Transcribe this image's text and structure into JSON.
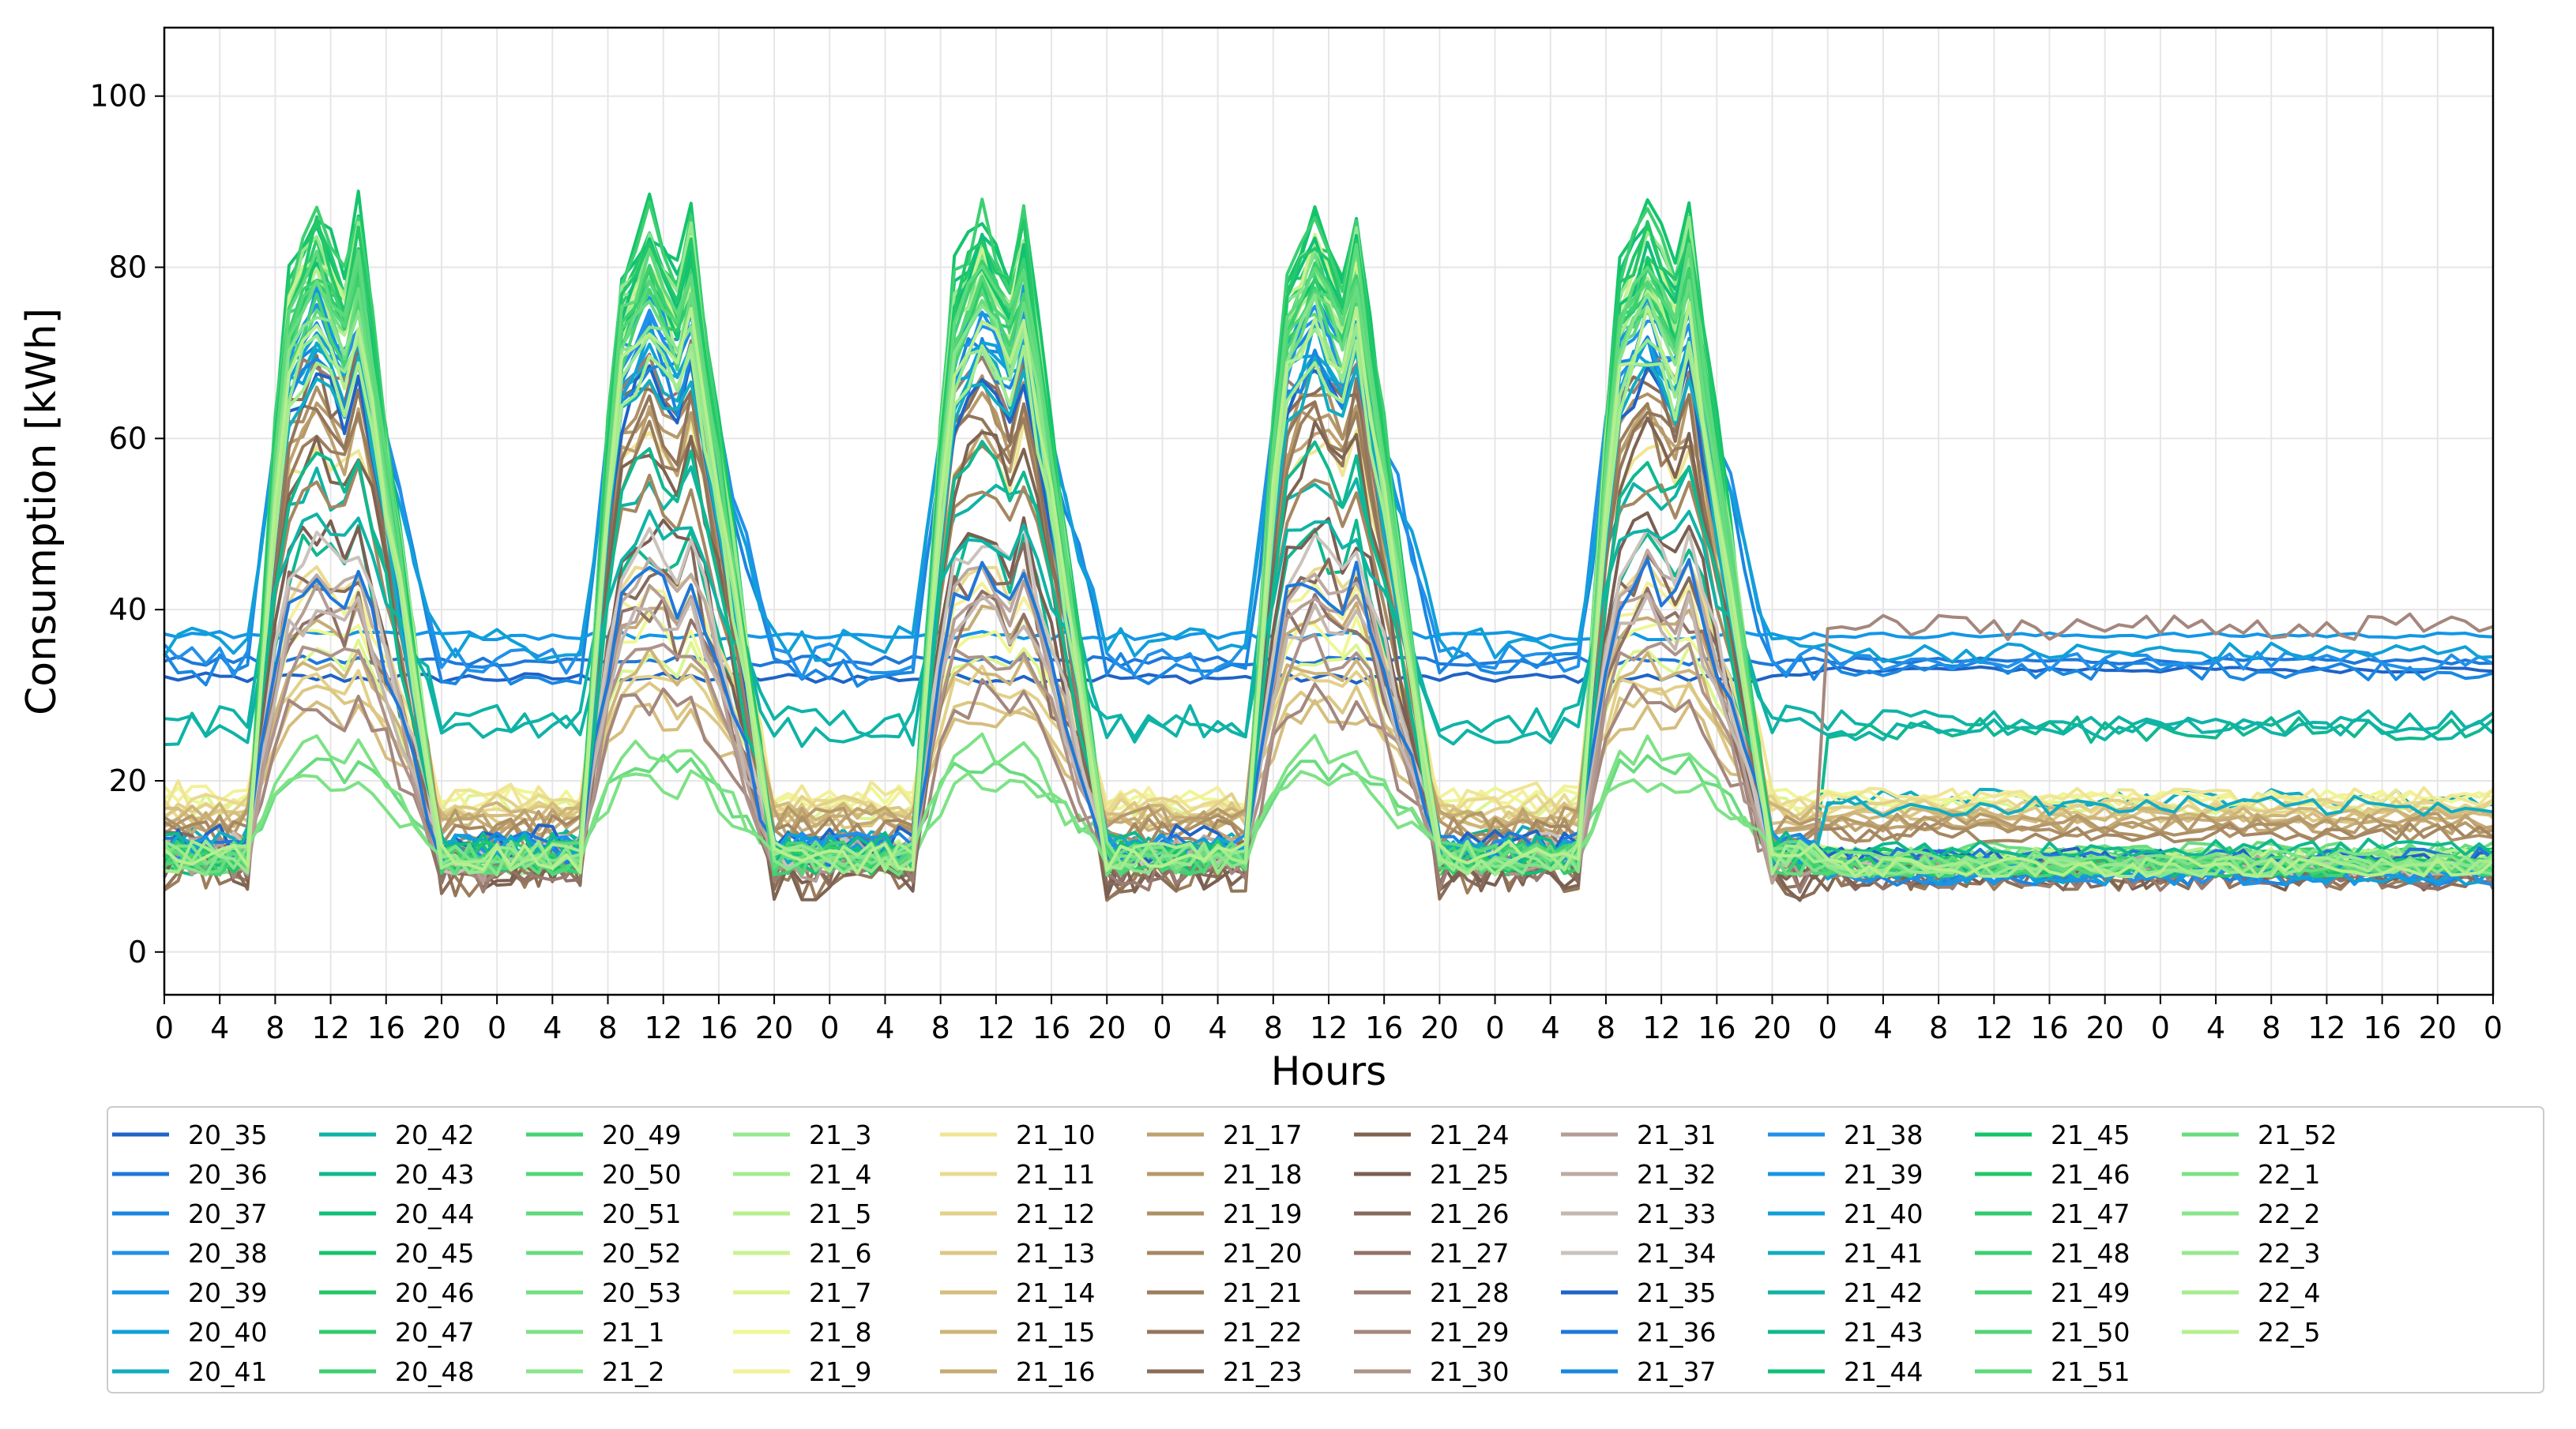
{
  "chart_data": {
    "type": "line",
    "xlabel": "Hours",
    "ylabel": "Consumption [kWh]",
    "ylim": [
      -5,
      108
    ],
    "xlim": [
      0,
      168
    ],
    "x_ticks": [
      0,
      4,
      8,
      12,
      16,
      20,
      24,
      28,
      32,
      36,
      40,
      44,
      48,
      52,
      56,
      60,
      64,
      68,
      72,
      76,
      80,
      84,
      88,
      92,
      96,
      100,
      104,
      108,
      112,
      116,
      120,
      124,
      128,
      132,
      136,
      140,
      144,
      148,
      152,
      156,
      160,
      164,
      168
    ],
    "x_tick_labels": [
      "0",
      "4",
      "8",
      "12",
      "16",
      "20",
      "0",
      "4",
      "8",
      "12",
      "16",
      "20",
      "0",
      "4",
      "8",
      "12",
      "16",
      "20",
      "0",
      "4",
      "8",
      "12",
      "16",
      "20",
      "0",
      "4",
      "8",
      "12",
      "16",
      "20",
      "0",
      "4",
      "8",
      "12",
      "16",
      "20",
      "0",
      "4",
      "8",
      "12",
      "16",
      "20",
      "0"
    ],
    "y_ticks": [
      0,
      20,
      40,
      60,
      80,
      100
    ],
    "y_tick_labels": [
      "0",
      "20",
      "40",
      "60",
      "80",
      "100"
    ],
    "grid": true,
    "legend_position": "below",
    "legend_columns": 12,
    "n_hours": 168,
    "series": [
      {
        "name": "20_35",
        "color": "#1f63c6",
        "shape": "flat",
        "base": 32,
        "peak": 0,
        "night": 32,
        "tail": 33,
        "noise": 0.6
      },
      {
        "name": "20_36",
        "color": "#1f78d8",
        "shape": "flat",
        "base": 34,
        "peak": 0,
        "night": 34,
        "tail": 34,
        "noise": 0.6
      },
      {
        "name": "20_37",
        "color": "#1a86e0",
        "shape": "office",
        "base": 33,
        "peak": 72,
        "night": 33,
        "tail": 33,
        "noise": 2.0
      },
      {
        "name": "20_38",
        "color": "#2190ea",
        "shape": "office",
        "base": 34,
        "peak": 74,
        "night": 34,
        "tail": 34,
        "noise": 2.0
      },
      {
        "name": "20_39",
        "color": "#1496e6",
        "shape": "flat",
        "base": 37,
        "peak": 0,
        "night": 37,
        "tail": 37,
        "noise": 0.5
      },
      {
        "name": "20_40",
        "color": "#10a0d8",
        "shape": "office",
        "base": 36,
        "peak": 70,
        "night": 36,
        "tail": 35,
        "noise": 2.0
      },
      {
        "name": "20_41",
        "color": "#12acc0",
        "shape": "office",
        "base": 13,
        "peak": 70,
        "night": 12,
        "tail": 18,
        "noise": 1.8
      },
      {
        "name": "20_42",
        "color": "#0fb3a6",
        "shape": "office",
        "base": 27,
        "peak": 55,
        "night": 27,
        "tail": 27,
        "noise": 2.0
      },
      {
        "name": "20_43",
        "color": "#10b88e",
        "shape": "office",
        "base": 12,
        "peak": 48,
        "night": 12,
        "tail": 26,
        "noise": 2.5
      },
      {
        "name": "20_44",
        "color": "#10bf78",
        "shape": "office",
        "base": 11,
        "peak": 85,
        "night": 11,
        "tail": 11,
        "noise": 2.0
      },
      {
        "name": "20_45",
        "color": "#14c46a",
        "shape": "office",
        "base": 11,
        "peak": 87,
        "night": 11,
        "tail": 11,
        "noise": 2.0
      },
      {
        "name": "20_46",
        "color": "#22c768",
        "shape": "office",
        "base": 11,
        "peak": 84,
        "night": 11,
        "tail": 11,
        "noise": 2.0
      },
      {
        "name": "20_47",
        "color": "#2fcb6c",
        "shape": "office",
        "base": 11,
        "peak": 82,
        "night": 11,
        "tail": 11,
        "noise": 2.0
      },
      {
        "name": "20_48",
        "color": "#3ccf70",
        "shape": "office",
        "base": 11,
        "peak": 86,
        "night": 11,
        "tail": 11,
        "noise": 2.0
      },
      {
        "name": "20_49",
        "color": "#46d273",
        "shape": "office",
        "base": 11,
        "peak": 80,
        "night": 11,
        "tail": 11,
        "noise": 2.0
      },
      {
        "name": "20_50",
        "color": "#52d677",
        "shape": "office",
        "base": 11,
        "peak": 78,
        "night": 11,
        "tail": 11,
        "noise": 2.0
      },
      {
        "name": "20_51",
        "color": "#5ed97b",
        "shape": "office",
        "base": 11,
        "peak": 76,
        "night": 11,
        "tail": 11,
        "noise": 2.0
      },
      {
        "name": "20_52",
        "color": "#69dc7f",
        "shape": "office",
        "base": 12,
        "peak": 22,
        "night": 12,
        "tail": 12,
        "noise": 1.5
      },
      {
        "name": "20_53",
        "color": "#72df80",
        "shape": "office",
        "base": 11,
        "peak": 80,
        "night": 11,
        "tail": 11,
        "noise": 2.0
      },
      {
        "name": "21_1",
        "color": "#7de286",
        "shape": "office",
        "base": 12,
        "peak": 20,
        "night": 11,
        "tail": 11,
        "noise": 1.5
      },
      {
        "name": "21_2",
        "color": "#88e58b",
        "shape": "office",
        "base": 11,
        "peak": 82,
        "night": 11,
        "tail": 11,
        "noise": 2.0
      },
      {
        "name": "21_3",
        "color": "#97e88f",
        "shape": "office",
        "base": 11,
        "peak": 84,
        "night": 11,
        "tail": 11,
        "noise": 2.0
      },
      {
        "name": "21_4",
        "color": "#a6ec8e",
        "shape": "office",
        "base": 11,
        "peak": 80,
        "night": 11,
        "tail": 11,
        "noise": 2.0
      },
      {
        "name": "21_5",
        "color": "#b7ef8e",
        "shape": "office",
        "base": 11,
        "peak": 78,
        "night": 11,
        "tail": 11,
        "noise": 2.0
      },
      {
        "name": "21_6",
        "color": "#c9f28f",
        "shape": "office",
        "base": 11,
        "peak": 82,
        "night": 11,
        "tail": 11,
        "noise": 2.0
      },
      {
        "name": "21_7",
        "color": "#dcf591",
        "shape": "office",
        "base": 17,
        "peak": 35,
        "night": 17,
        "tail": 17,
        "noise": 1.5
      },
      {
        "name": "21_8",
        "color": "#eef794",
        "shape": "office",
        "base": 18,
        "peak": 38,
        "night": 18,
        "tail": 18,
        "noise": 1.5
      },
      {
        "name": "21_9",
        "color": "#f3f09a",
        "shape": "office",
        "base": 18,
        "peak": 42,
        "night": 18,
        "tail": 18,
        "noise": 1.5
      },
      {
        "name": "21_10",
        "color": "#efe594",
        "shape": "office",
        "base": 18,
        "peak": 60,
        "night": 18,
        "tail": 18,
        "noise": 2.0
      },
      {
        "name": "21_11",
        "color": "#e9da8f",
        "shape": "office",
        "base": 17,
        "peak": 45,
        "night": 17,
        "tail": 17,
        "noise": 1.5
      },
      {
        "name": "21_12",
        "color": "#e3d089",
        "shape": "office",
        "base": 17,
        "peak": 32,
        "night": 17,
        "tail": 17,
        "noise": 1.5
      },
      {
        "name": "21_13",
        "color": "#dcc783",
        "shape": "office",
        "base": 16,
        "peak": 30,
        "night": 16,
        "tail": 16,
        "noise": 1.5
      },
      {
        "name": "21_14",
        "color": "#d5bd7e",
        "shape": "office",
        "base": 16,
        "peak": 28,
        "night": 16,
        "tail": 16,
        "noise": 1.5
      },
      {
        "name": "21_15",
        "color": "#cdb479",
        "shape": "office",
        "base": 16,
        "peak": 34,
        "night": 16,
        "tail": 16,
        "noise": 1.5
      },
      {
        "name": "21_16",
        "color": "#c6ab74",
        "shape": "office",
        "base": 15,
        "peak": 40,
        "night": 15,
        "tail": 15,
        "noise": 1.5
      },
      {
        "name": "21_17",
        "color": "#bea26f",
        "shape": "office",
        "base": 15,
        "peak": 62,
        "night": 15,
        "tail": 15,
        "noise": 2.0
      },
      {
        "name": "21_18",
        "color": "#b6996a",
        "shape": "office",
        "base": 15,
        "peak": 64,
        "night": 15,
        "tail": 15,
        "noise": 2.0
      },
      {
        "name": "21_19",
        "color": "#ae9065",
        "shape": "office",
        "base": 14,
        "peak": 66,
        "night": 14,
        "tail": 14,
        "noise": 2.0
      },
      {
        "name": "21_20",
        "color": "#a58761",
        "shape": "office",
        "base": 14,
        "peak": 55,
        "night": 14,
        "tail": 14,
        "noise": 2.0
      },
      {
        "name": "21_21",
        "color": "#9c7e5c",
        "shape": "office",
        "base": 10,
        "peak": 62,
        "night": 9,
        "tail": 9,
        "noise": 3.0
      },
      {
        "name": "21_22",
        "color": "#93765a",
        "shape": "office",
        "base": 10,
        "peak": 64,
        "night": 9,
        "tail": 9,
        "noise": 3.0
      },
      {
        "name": "21_23",
        "color": "#8a6e58",
        "shape": "office",
        "base": 10,
        "peak": 68,
        "night": 9,
        "tail": 9,
        "noise": 3.0
      },
      {
        "name": "21_24",
        "color": "#7f6452",
        "shape": "office",
        "base": 10,
        "peak": 60,
        "night": 9,
        "tail": 9,
        "noise": 3.0
      },
      {
        "name": "21_25",
        "color": "#7a5f52",
        "shape": "office",
        "base": 10,
        "peak": 50,
        "night": 9,
        "tail": 9,
        "noise": 3.0
      },
      {
        "name": "21_26",
        "color": "#866a5e",
        "shape": "office",
        "base": 11,
        "peak": 45,
        "night": 10,
        "tail": 9,
        "noise": 3.0
      },
      {
        "name": "21_27",
        "color": "#907268",
        "shape": "office",
        "base": 11,
        "peak": 40,
        "night": 10,
        "tail": 9,
        "noise": 3.0
      },
      {
        "name": "21_28",
        "color": "#9a7c72",
        "shape": "office",
        "base": 11,
        "peak": 70,
        "night": 10,
        "tail": 9,
        "noise": 3.0
      },
      {
        "name": "21_29",
        "color": "#a4877e",
        "shape": "office",
        "base": 11,
        "peak": 30,
        "night": 10,
        "tail": 38,
        "noise": 2.5
      },
      {
        "name": "21_30",
        "color": "#ad938a",
        "shape": "office",
        "base": 11,
        "peak": 36,
        "night": 10,
        "tail": 10,
        "noise": 2.0
      },
      {
        "name": "21_31",
        "color": "#b59e96",
        "shape": "office",
        "base": 11,
        "peak": 42,
        "night": 10,
        "tail": 10,
        "noise": 2.0
      },
      {
        "name": "21_32",
        "color": "#bcaaa3",
        "shape": "office",
        "base": 12,
        "peak": 45,
        "night": 11,
        "tail": 10,
        "noise": 2.0
      },
      {
        "name": "21_33",
        "color": "#c3b7b0",
        "shape": "office",
        "base": 12,
        "peak": 40,
        "night": 11,
        "tail": 10,
        "noise": 2.0
      },
      {
        "name": "21_34",
        "color": "#cac2bc",
        "shape": "office",
        "base": 12,
        "peak": 48,
        "night": 11,
        "tail": 10,
        "noise": 2.0
      },
      {
        "name": "21_35",
        "color": "#1f63c6",
        "shape": "office",
        "base": 13,
        "peak": 68,
        "night": 12,
        "tail": 11,
        "noise": 2.0
      },
      {
        "name": "21_36",
        "color": "#1f78d8",
        "shape": "office",
        "base": 12,
        "peak": 44,
        "night": 12,
        "tail": 11,
        "noise": 2.0
      },
      {
        "name": "21_37",
        "color": "#1a86e0",
        "shape": "office",
        "base": 12,
        "peak": 70,
        "night": 12,
        "tail": 9,
        "noise": 2.0
      },
      {
        "name": "21_38",
        "color": "#2190ea",
        "shape": "office",
        "base": 12,
        "peak": 74,
        "night": 12,
        "tail": 9,
        "noise": 2.0
      },
      {
        "name": "21_39",
        "color": "#1496e6",
        "shape": "office",
        "base": 12,
        "peak": 76,
        "night": 12,
        "tail": 9,
        "noise": 2.0
      },
      {
        "name": "21_40",
        "color": "#10a0d8",
        "shape": "office",
        "base": 12,
        "peak": 72,
        "night": 12,
        "tail": 9,
        "noise": 2.0
      },
      {
        "name": "21_41",
        "color": "#12acc0",
        "shape": "office",
        "base": 12,
        "peak": 68,
        "night": 12,
        "tail": 17,
        "noise": 2.0
      },
      {
        "name": "21_42",
        "color": "#0fb3a6",
        "shape": "office",
        "base": 26,
        "peak": 50,
        "night": 26,
        "tail": 26,
        "noise": 2.0
      },
      {
        "name": "21_43",
        "color": "#10b88e",
        "shape": "office",
        "base": 12,
        "peak": 58,
        "night": 12,
        "tail": 12,
        "noise": 2.0
      },
      {
        "name": "21_44",
        "color": "#10bf78",
        "shape": "office",
        "base": 11,
        "peak": 82,
        "night": 11,
        "tail": 10,
        "noise": 2.0
      },
      {
        "name": "21_45",
        "color": "#14c46a",
        "shape": "office",
        "base": 11,
        "peak": 80,
        "night": 11,
        "tail": 10,
        "noise": 2.0
      },
      {
        "name": "21_46",
        "color": "#22c768",
        "shape": "office",
        "base": 11,
        "peak": 84,
        "night": 11,
        "tail": 10,
        "noise": 2.0
      },
      {
        "name": "21_47",
        "color": "#2fcb6c",
        "shape": "office",
        "base": 11,
        "peak": 78,
        "night": 11,
        "tail": 10,
        "noise": 2.0
      },
      {
        "name": "21_48",
        "color": "#3ccf70",
        "shape": "office",
        "base": 11,
        "peak": 80,
        "night": 11,
        "tail": 10,
        "noise": 2.0
      },
      {
        "name": "21_49",
        "color": "#46d273",
        "shape": "office",
        "base": 11,
        "peak": 76,
        "night": 11,
        "tail": 10,
        "noise": 2.0
      },
      {
        "name": "21_50",
        "color": "#52d677",
        "shape": "office",
        "base": 11,
        "peak": 79,
        "night": 11,
        "tail": 10,
        "noise": 2.0
      },
      {
        "name": "21_51",
        "color": "#5ed97b",
        "shape": "office",
        "base": 11,
        "peak": 81,
        "night": 11,
        "tail": 10,
        "noise": 2.0
      },
      {
        "name": "21_52",
        "color": "#69dc7f",
        "shape": "office",
        "base": 11,
        "peak": 77,
        "night": 11,
        "tail": 10,
        "noise": 2.0
      },
      {
        "name": "22_1",
        "color": "#7de286",
        "shape": "office",
        "base": 11,
        "peak": 24,
        "night": 11,
        "tail": 11,
        "noise": 1.5
      },
      {
        "name": "22_2",
        "color": "#88e58b",
        "shape": "office",
        "base": 11,
        "peak": 75,
        "night": 11,
        "tail": 10,
        "noise": 2.0
      },
      {
        "name": "22_3",
        "color": "#97e88f",
        "shape": "office",
        "base": 11,
        "peak": 72,
        "night": 11,
        "tail": 10,
        "noise": 2.0
      },
      {
        "name": "22_4",
        "color": "#a6ec8e",
        "shape": "office",
        "base": 11,
        "peak": 70,
        "night": 11,
        "tail": 10,
        "noise": 2.0
      },
      {
        "name": "22_5",
        "color": "#b7ef8e",
        "shape": "office",
        "base": 11,
        "peak": 74,
        "night": 11,
        "tail": 10,
        "noise": 2.0
      }
    ]
  }
}
